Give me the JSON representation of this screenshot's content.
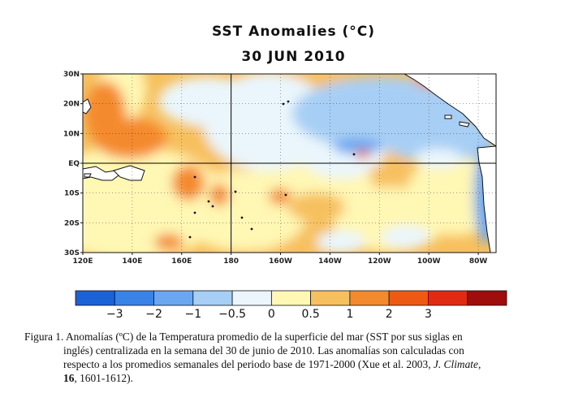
{
  "title": "SST Anomalies (°C)",
  "date": "30 JUN 2010",
  "map": {
    "x_ticks": [
      "120E",
      "140E",
      "160E",
      "180",
      "160W",
      "140W",
      "120W",
      "100W",
      "80W"
    ],
    "y_ticks": [
      "30N",
      "20N",
      "10N",
      "EQ",
      "10S",
      "20S",
      "30S"
    ],
    "colors": {
      "land": "#ffffff",
      "coast": "#111111"
    }
  },
  "colorbar": {
    "colors": [
      "#1a62d6",
      "#3a83e6",
      "#6aa7f0",
      "#a7cff5",
      "#eaf6fc",
      "#fff7b4",
      "#f7c05e",
      "#f48a2e",
      "#ee5a14",
      "#e02a12",
      "#a00d0d"
    ],
    "labels": [
      "−3",
      "−2",
      "−1",
      "−0.5",
      "0",
      "0.5",
      "1",
      "2",
      "3"
    ]
  },
  "caption": {
    "lines": [
      "Figura  1. Anomalías  (ºC) de la Temperatura  promedio  de la superficie  del mar  (SST por sus siglas  en",
      "inglés)  centralizada  en la semana  del 30 de junio  de 2010. Las anomalías  son calculadas  con",
      "respecto a los promedios  semanales  del periodo base de 1971-2000  (Xue et al. 2003, "
    ],
    "journal": "J. Climate",
    "sep": ",",
    "volume": "16",
    "pages": ", 1601-1612)."
  }
}
